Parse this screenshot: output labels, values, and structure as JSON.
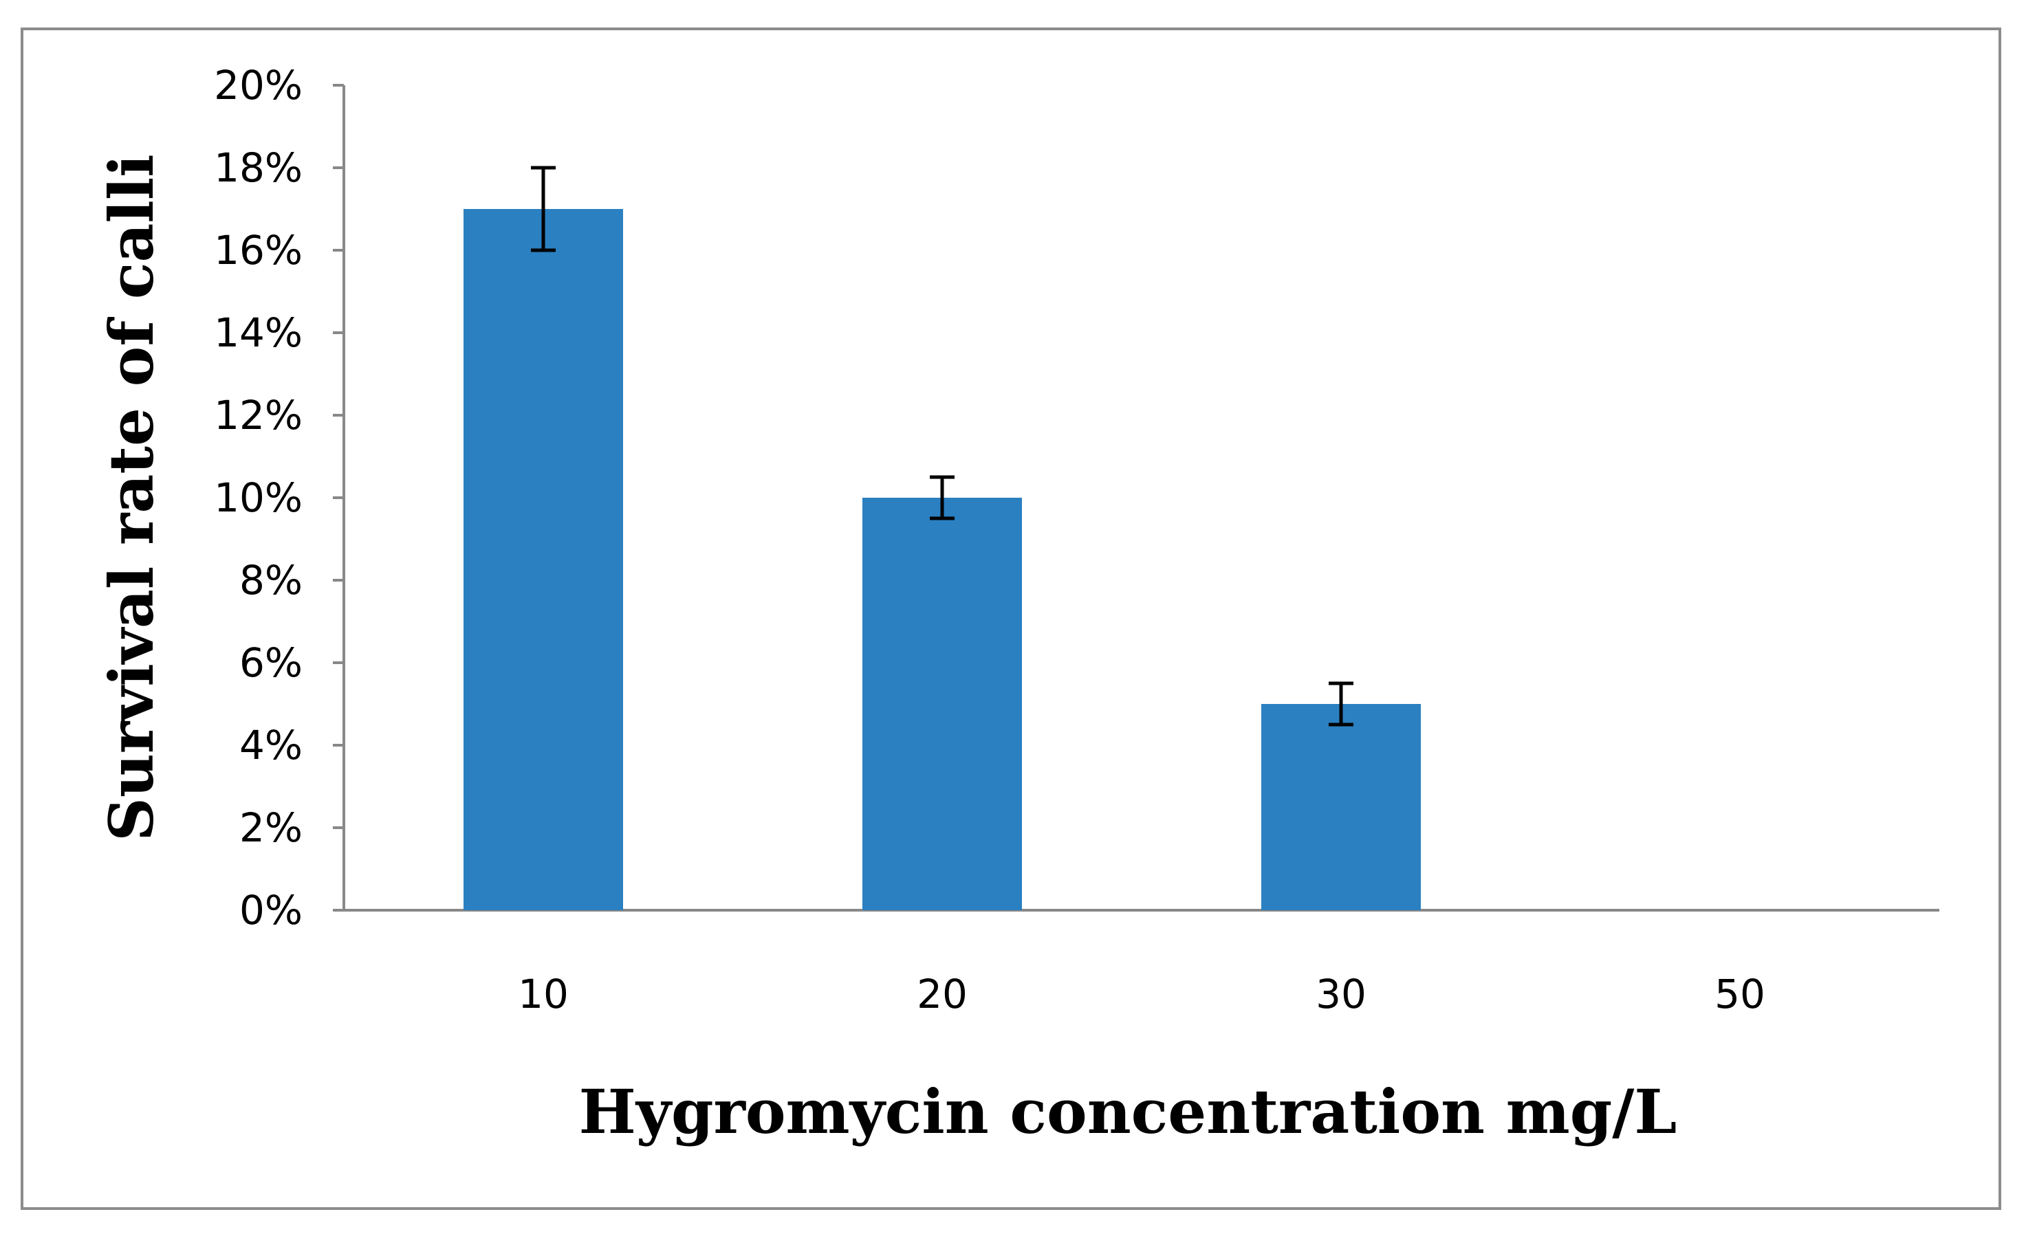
{
  "chart_data": {
    "type": "bar",
    "title": "",
    "xlabel": "Hygromycin concentration mg/L",
    "ylabel": "Survival rate of calli",
    "categories": [
      "10",
      "20",
      "30",
      "50"
    ],
    "values": [
      17,
      10,
      5,
      0
    ],
    "errors": [
      1,
      0.5,
      0.5,
      0
    ],
    "ylim": [
      0,
      20
    ],
    "y_ticks": [
      0,
      2,
      4,
      6,
      8,
      10,
      12,
      14,
      16,
      18,
      20
    ],
    "y_tick_format": "percent",
    "grid": false,
    "legend": "none",
    "colors": {
      "bar": "#2b80c1",
      "axis": "#888888",
      "error_bar": "#000000",
      "frame": "#8c8c8c"
    }
  }
}
